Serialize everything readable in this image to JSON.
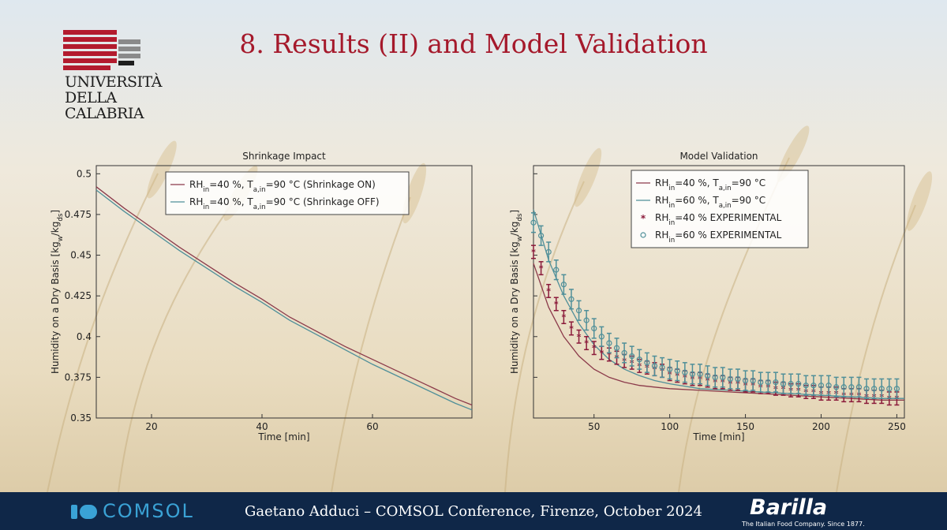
{
  "slide": {
    "title": "8. Results (II) and Model Validation",
    "university_logo_text": "UNIVERSITÀ\nDELLA\nCALABRIA",
    "footer_text": "Gaetano Adduci – COMSOL Conference, Firenze, October 2024",
    "comsol_logo_text": "COMSOL",
    "barilla_logo_text": "Barilla",
    "barilla_tagline": "The Italian Food Company. Since 1877.",
    "colors": {
      "title": "#a5192b",
      "footer_bg": "#0f2748",
      "comsol_blue": "#3aa2d5",
      "series_red": "#8b3a4a",
      "series_teal": "#4f8f99"
    }
  },
  "chart_data": [
    {
      "type": "line",
      "title": "Shrinkage Impact",
      "xlabel": "Time [min]",
      "ylabel": "Humidity on a Dry Basis [kg_w/kg_ds]",
      "xlim": [
        10,
        78
      ],
      "ylim": [
        0.35,
        0.505
      ],
      "xticks": [
        20,
        40,
        60
      ],
      "yticks": [
        0.35,
        0.375,
        0.4,
        0.425,
        0.45,
        0.475,
        0.5
      ],
      "ytick_labels": [
        "0.35",
        "0.375",
        "0.4",
        "0.425",
        "0.45",
        "0.475",
        "0.5"
      ],
      "legend_position": "top-right",
      "series": [
        {
          "name": "RH_in=40 %, T_a,in=90 °C (Shrinkage ON)",
          "color": "#8b3a4a",
          "x": [
            10,
            15,
            20,
            25,
            30,
            35,
            40,
            45,
            50,
            55,
            60,
            65,
            70,
            75,
            78
          ],
          "y": [
            0.492,
            0.479,
            0.467,
            0.455,
            0.444,
            0.433,
            0.423,
            0.412,
            0.403,
            0.394,
            0.386,
            0.378,
            0.37,
            0.362,
            0.358
          ]
        },
        {
          "name": "RH_in=40 %, T_a,in=90 °C (Shrinkage OFF)",
          "color": "#4f8f99",
          "x": [
            10,
            15,
            20,
            25,
            30,
            35,
            40,
            45,
            50,
            55,
            60,
            65,
            70,
            75,
            78
          ],
          "y": [
            0.49,
            0.477,
            0.465,
            0.453,
            0.442,
            0.431,
            0.421,
            0.41,
            0.401,
            0.392,
            0.383,
            0.375,
            0.367,
            0.359,
            0.355
          ]
        }
      ]
    },
    {
      "type": "line",
      "title": "Model Validation",
      "xlabel": "Time [min]",
      "ylabel": "Humidity on a Dry Basis [kg_w/kg_ds]",
      "xlim": [
        10,
        255
      ],
      "ylim": [
        0.35,
        0.505
      ],
      "xticks": [
        50,
        100,
        150,
        200,
        250
      ],
      "yticks": [
        0.35,
        0.375,
        0.4,
        0.425,
        0.45,
        0.475,
        0.5
      ],
      "legend_position": "top-right",
      "series": [
        {
          "name": "RH_in=40 %, T_a,in=90 °C",
          "kind": "line",
          "color": "#8b3a4a",
          "x": [
            10,
            20,
            30,
            40,
            50,
            60,
            70,
            80,
            90,
            100,
            120,
            140,
            160,
            180,
            200,
            220,
            240,
            255
          ],
          "y": [
            0.445,
            0.418,
            0.4,
            0.388,
            0.38,
            0.375,
            0.372,
            0.37,
            0.369,
            0.368,
            0.367,
            0.366,
            0.365,
            0.364,
            0.363,
            0.362,
            0.361,
            0.361
          ]
        },
        {
          "name": "RH_in=60 %, T_a,in=90 °C",
          "kind": "line",
          "color": "#4f8f99",
          "x": [
            10,
            20,
            30,
            40,
            50,
            60,
            70,
            80,
            90,
            100,
            120,
            140,
            160,
            180,
            200,
            220,
            240,
            255
          ],
          "y": [
            0.478,
            0.447,
            0.425,
            0.408,
            0.395,
            0.386,
            0.38,
            0.376,
            0.373,
            0.371,
            0.368,
            0.367,
            0.366,
            0.365,
            0.364,
            0.363,
            0.362,
            0.362
          ]
        },
        {
          "name": "RH_in=40 % EXPERIMENTAL",
          "kind": "points",
          "marker": "star",
          "color": "#8b1a3a",
          "x": [
            10,
            15,
            20,
            25,
            30,
            35,
            40,
            45,
            50,
            55,
            60,
            65,
            70,
            75,
            80,
            85,
            90,
            95,
            100,
            105,
            110,
            115,
            120,
            125,
            130,
            135,
            140,
            145,
            150,
            155,
            160,
            165,
            170,
            175,
            180,
            185,
            190,
            195,
            200,
            205,
            210,
            215,
            220,
            225,
            230,
            235,
            240,
            245,
            250
          ],
          "y": [
            0.452,
            0.442,
            0.428,
            0.42,
            0.412,
            0.405,
            0.4,
            0.396,
            0.393,
            0.39,
            0.389,
            0.387,
            0.385,
            0.384,
            0.382,
            0.381,
            0.38,
            0.379,
            0.377,
            0.376,
            0.375,
            0.374,
            0.374,
            0.373,
            0.372,
            0.372,
            0.371,
            0.371,
            0.37,
            0.37,
            0.369,
            0.369,
            0.368,
            0.368,
            0.367,
            0.367,
            0.366,
            0.366,
            0.365,
            0.365,
            0.365,
            0.364,
            0.364,
            0.364,
            0.363,
            0.363,
            0.363,
            0.362,
            0.362
          ],
          "error": 0.004
        },
        {
          "name": "RH_in=60 % EXPERIMENTAL",
          "kind": "points",
          "marker": "circle",
          "color": "#4f8f99",
          "x": [
            10,
            15,
            20,
            25,
            30,
            35,
            40,
            45,
            50,
            55,
            60,
            65,
            70,
            75,
            80,
            85,
            90,
            95,
            100,
            105,
            110,
            115,
            120,
            125,
            130,
            135,
            140,
            145,
            150,
            155,
            160,
            165,
            170,
            175,
            180,
            185,
            190,
            195,
            200,
            205,
            210,
            215,
            220,
            225,
            230,
            235,
            240,
            245,
            250
          ],
          "y": [
            0.47,
            0.462,
            0.452,
            0.441,
            0.432,
            0.423,
            0.416,
            0.41,
            0.405,
            0.4,
            0.396,
            0.393,
            0.39,
            0.388,
            0.386,
            0.384,
            0.382,
            0.381,
            0.38,
            0.379,
            0.378,
            0.377,
            0.377,
            0.376,
            0.375,
            0.375,
            0.374,
            0.374,
            0.373,
            0.373,
            0.372,
            0.372,
            0.372,
            0.371,
            0.371,
            0.371,
            0.37,
            0.37,
            0.37,
            0.37,
            0.369,
            0.369,
            0.369,
            0.369,
            0.368,
            0.368,
            0.368,
            0.368,
            0.368
          ],
          "error": 0.006
        }
      ]
    }
  ]
}
